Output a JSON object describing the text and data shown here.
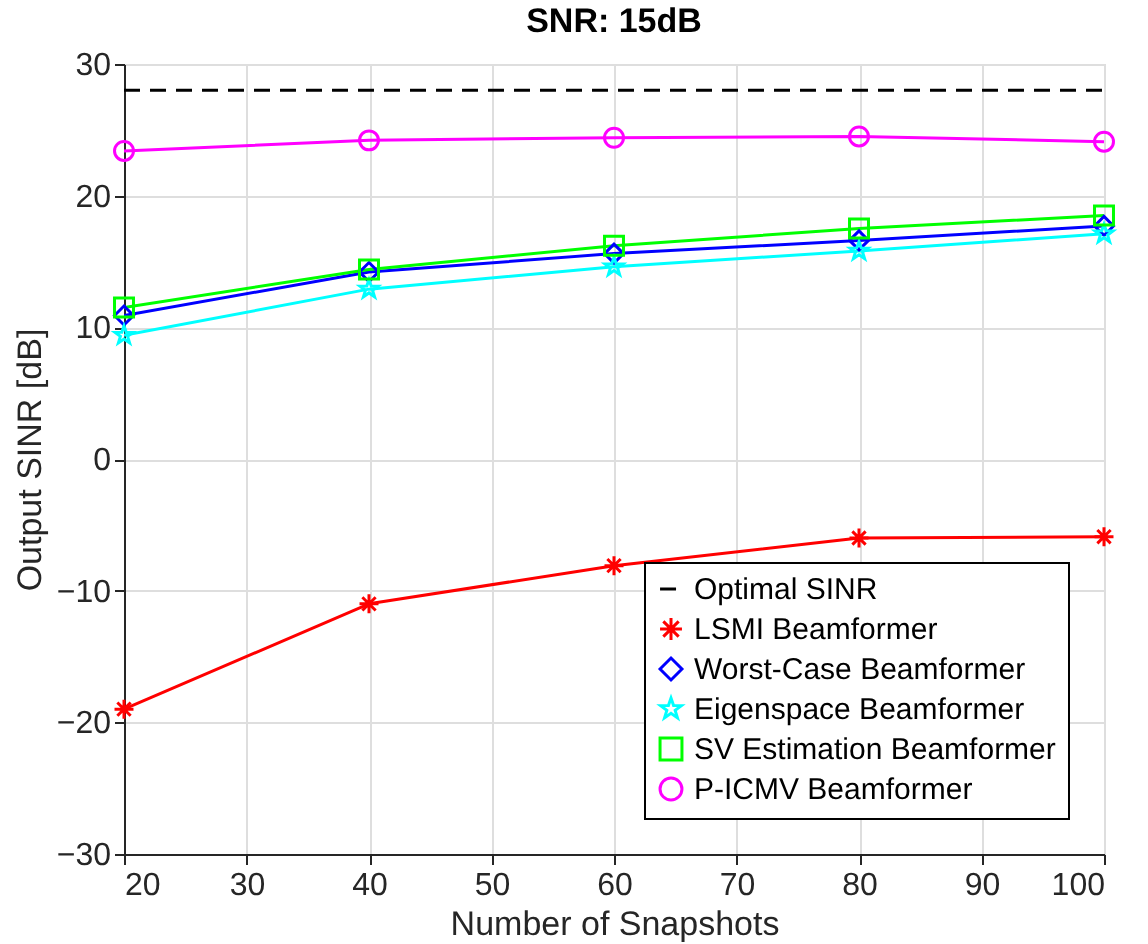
{
  "chart_data": {
    "type": "line",
    "title": "SNR: 15dB",
    "xlabel": "Number of Snapshots",
    "ylabel": "Output SINR [dB]",
    "x": [
      20,
      40,
      60,
      80,
      100
    ],
    "series": [
      {
        "name": "Optimal SINR",
        "color": "#000000",
        "values": [
          28,
          28,
          28,
          28,
          28
        ],
        "marker": "none",
        "line_style": "dashed"
      },
      {
        "name": "LSMI Beamformer",
        "color": "#ff0000",
        "values": [
          -19.0,
          -11.0,
          -8.1,
          -6.0,
          -5.9
        ],
        "marker": "cross"
      },
      {
        "name": "Worst-Case Beamformer",
        "color": "#0000ff",
        "values": [
          10.9,
          14.2,
          15.6,
          16.6,
          17.7
        ],
        "marker": "diamond"
      },
      {
        "name": "Eigenspace Beamformer",
        "color": "#00ffff",
        "values": [
          9.4,
          12.9,
          14.6,
          15.8,
          17.1
        ],
        "marker": "star"
      },
      {
        "name": "SV Estimation Beamformer",
        "color": "#00ff00",
        "values": [
          11.5,
          14.4,
          16.2,
          17.5,
          18.5
        ],
        "marker": "square"
      },
      {
        "name": "P-ICMV Beamformer",
        "color": "#ff00ff",
        "values": [
          23.4,
          24.2,
          24.4,
          24.5,
          24.1
        ],
        "marker": "circle"
      }
    ],
    "xlim": [
      20,
      100
    ],
    "xticks": [
      20,
      30,
      40,
      50,
      60,
      70,
      80,
      90,
      100
    ],
    "ylim": [
      -30,
      30
    ],
    "yticks": [
      -30,
      -20,
      -10,
      0,
      10,
      20,
      30
    ],
    "grid": true,
    "legend": "bottom right",
    "line_style": "solid"
  }
}
